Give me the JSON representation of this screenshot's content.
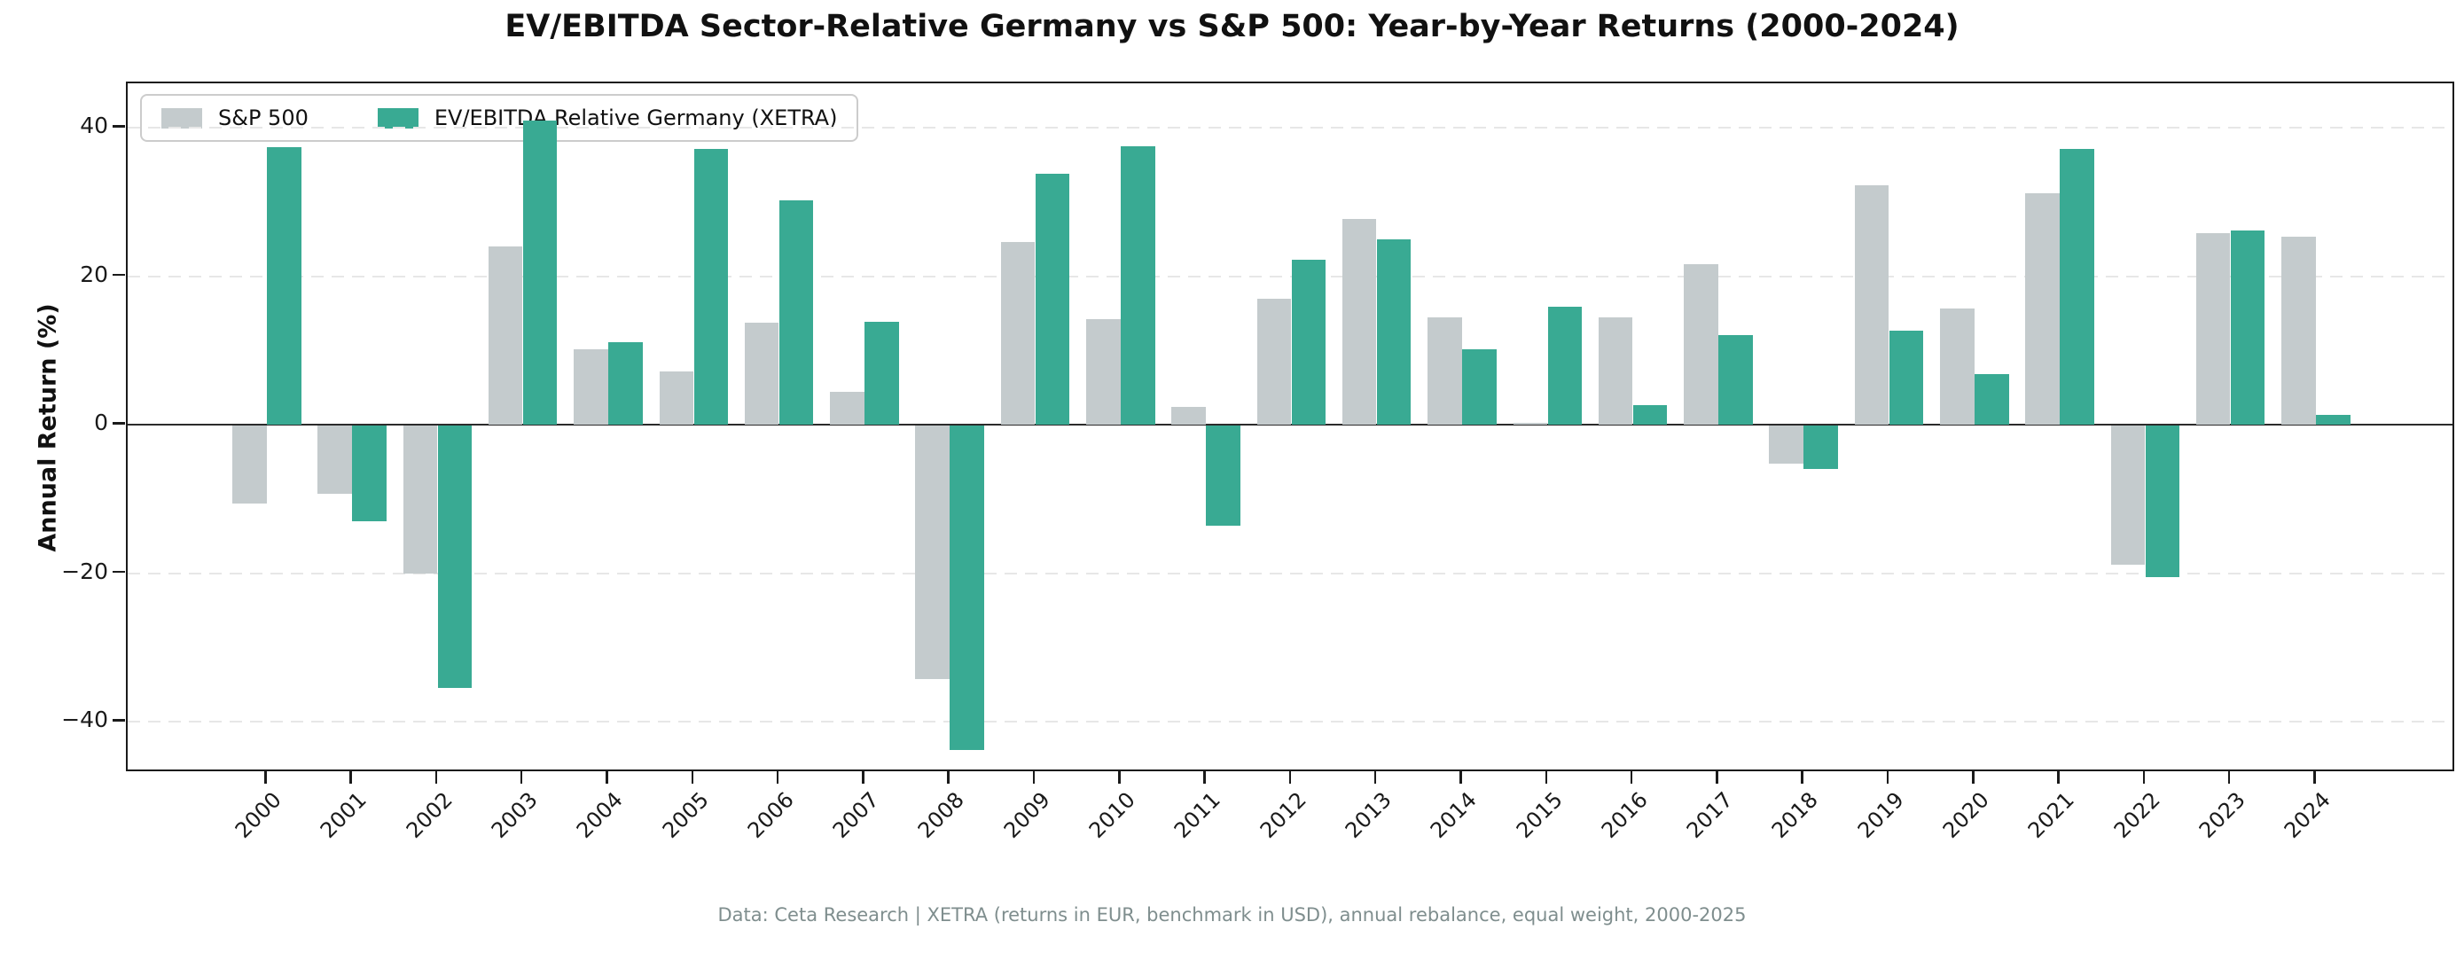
{
  "title": "EV/EBITDA Sector-Relative Germany vs S&P 500: Year-by-Year Returns (2000-2024)",
  "y_axis": {
    "label": "Annual Return (%)",
    "ticks": [
      40,
      20,
      0,
      -20,
      -40
    ]
  },
  "legend": [
    {
      "label": "S&P 500",
      "color": "#C4CBCD"
    },
    {
      "label": "EV/EBITDA Relative Germany (XETRA)",
      "color": "#39AA93"
    }
  ],
  "footer": "Data: Ceta Research | XETRA (returns in EUR, benchmark in USD), annual rebalance, equal weight, 2000-2025",
  "colors": {
    "sp500": "#C4CBCD",
    "germany": "#39AA93",
    "gridline": "#e7e7e7",
    "zero_line": "#2b2b2b",
    "spine": "#1a1a1a",
    "footer_text": "#7f8e8e"
  },
  "chart_data": {
    "type": "bar",
    "title": "EV/EBITDA Sector-Relative Germany vs S&P 500: Year-by-Year Returns (2000-2024)",
    "xlabel": "",
    "ylabel": "Annual Return (%)",
    "ylim": [
      -47,
      46
    ],
    "yticks": [
      40,
      20,
      0,
      -20,
      -40
    ],
    "grid": "horizontal dashed gridlines at -40,-20,20,40; solid line at 0",
    "legend_position": "upper left",
    "categories": [
      2000,
      2001,
      2002,
      2003,
      2004,
      2005,
      2006,
      2007,
      2008,
      2009,
      2010,
      2011,
      2012,
      2013,
      2014,
      2015,
      2016,
      2017,
      2018,
      2019,
      2020,
      2021,
      2022,
      2023,
      2024
    ],
    "series": [
      {
        "name": "S&P 500",
        "color": "#C4CBCD",
        "values": [
          -10.5,
          -9.2,
          -19.9,
          24.0,
          10.2,
          7.2,
          13.7,
          4.4,
          -34.2,
          24.6,
          14.2,
          2.4,
          17.0,
          27.7,
          14.5,
          0.2,
          14.4,
          21.6,
          -5.1,
          32.2,
          15.6,
          31.2,
          -18.8,
          25.8,
          25.3
        ]
      },
      {
        "name": "EV/EBITDA Relative Germany (XETRA)",
        "color": "#39AA93",
        "values": [
          37.4,
          -12.9,
          -35.3,
          41.0,
          11.1,
          37.1,
          30.2,
          13.9,
          -43.7,
          33.8,
          37.5,
          -13.5,
          22.2,
          24.9,
          10.2,
          15.9,
          2.6,
          12.1,
          -5.9,
          12.6,
          6.8,
          37.1,
          -20.4,
          26.1,
          1.3
        ]
      }
    ]
  }
}
